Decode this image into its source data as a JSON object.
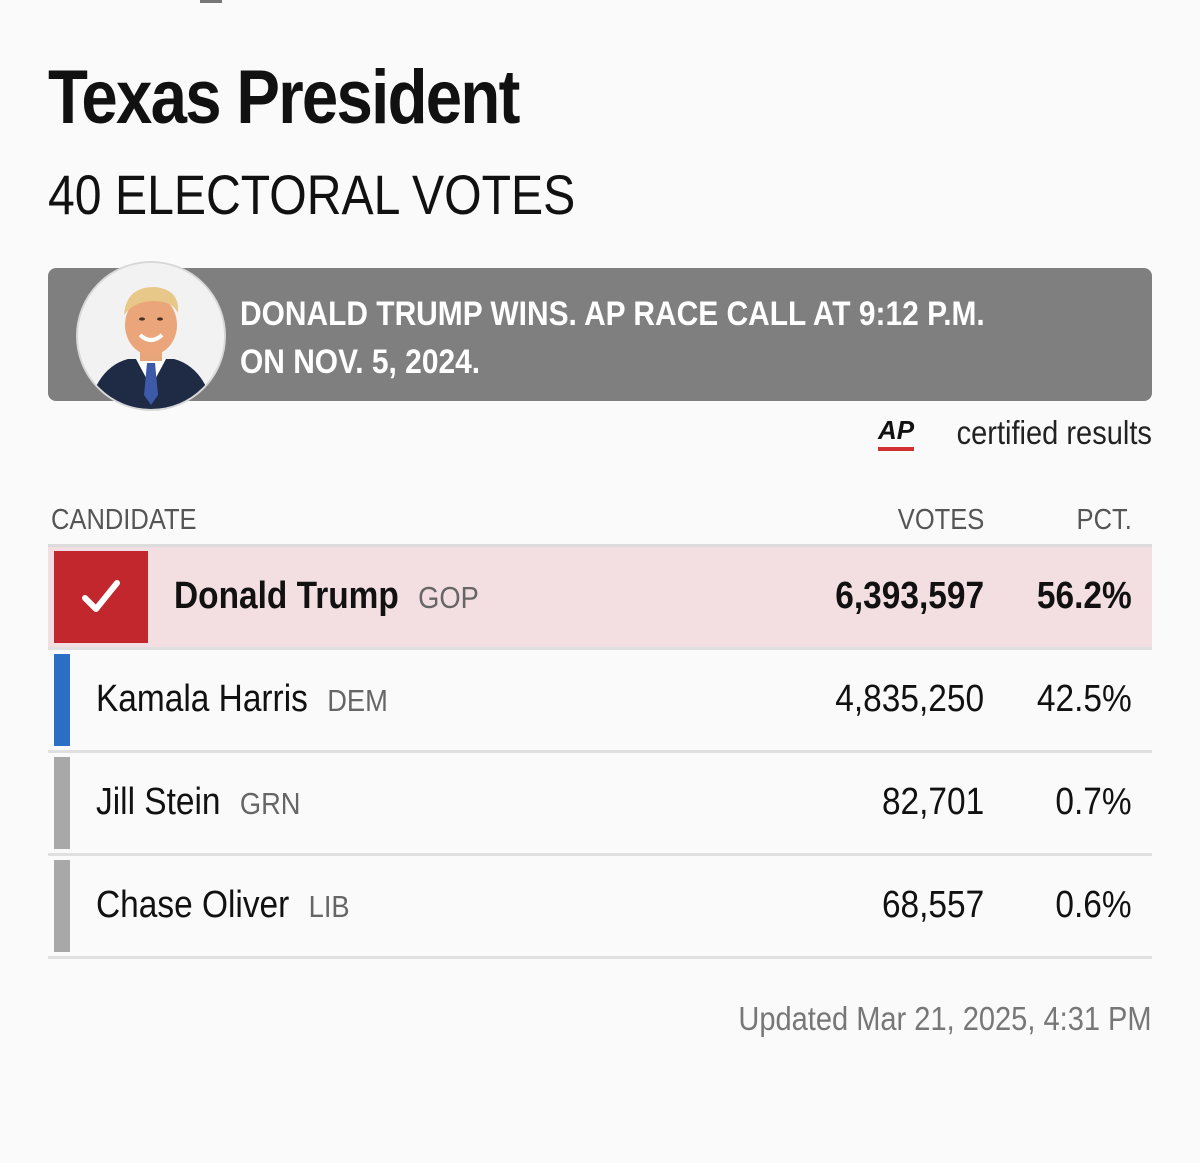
{
  "race": {
    "title": "Texas President",
    "subtitle": "40 ELECTORAL VOTES"
  },
  "banner": {
    "text": "DONALD TRUMP WINS. AP RACE CALL AT 9:12 P.M. ON NOV. 5, 2024."
  },
  "certified": {
    "logo": "AP",
    "label": "certified results"
  },
  "table": {
    "headers": {
      "candidate": "CANDIDATE",
      "votes": "VOTES",
      "pct": "PCT."
    },
    "rows": [
      {
        "name": "Donald Trump",
        "party": "GOP",
        "votes": "6,393,597",
        "pct": "56.2%",
        "winner": true,
        "color": "#c1272d"
      },
      {
        "name": "Kamala Harris",
        "party": "DEM",
        "votes": "4,835,250",
        "pct": "42.5%",
        "winner": false,
        "color": "#2b6fc5"
      },
      {
        "name": "Jill Stein",
        "party": "GRN",
        "votes": "82,701",
        "pct": "0.7%",
        "winner": false,
        "color": "#a8a8a8"
      },
      {
        "name": "Chase Oliver",
        "party": "LIB",
        "votes": "68,557",
        "pct": "0.6%",
        "winner": false,
        "color": "#a8a8a8"
      }
    ]
  },
  "footer": {
    "updated": "Updated Mar 21, 2025, 4:31 PM"
  },
  "icons": {
    "check": "check-icon",
    "avatar": "candidate-photo"
  }
}
